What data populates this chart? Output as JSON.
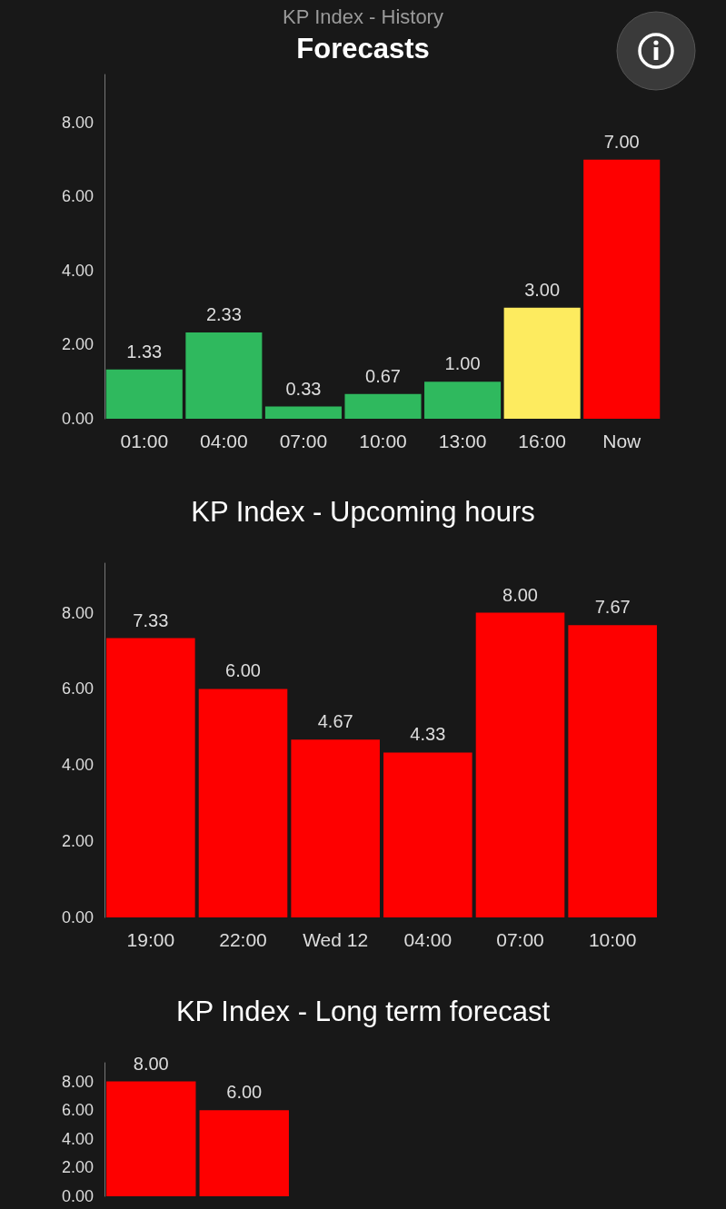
{
  "chart_data": [
    {
      "type": "bar",
      "title": "KP Index - History",
      "annotations": [
        "Forecasts"
      ],
      "categories": [
        "01:00",
        "04:00",
        "07:00",
        "10:00",
        "13:00",
        "16:00",
        "Now"
      ],
      "values": [
        1.33,
        2.33,
        0.33,
        0.67,
        1.0,
        3.0,
        7.0
      ],
      "colors": [
        "#2fb95e",
        "#2fb95e",
        "#2fb95e",
        "#2fb95e",
        "#2fb95e",
        "#fdeb5f",
        "#fe0000"
      ],
      "value_labels": [
        "1.33",
        "2.33",
        "0.33",
        "0.67",
        "1.00",
        "3.00",
        "7.00"
      ],
      "ylim": [
        0,
        9.3
      ],
      "yticks": [
        {
          "value": 0,
          "label": "0.00"
        },
        {
          "value": 2,
          "label": "2.00"
        },
        {
          "value": 4,
          "label": "4.00"
        },
        {
          "value": 6,
          "label": "6.00"
        },
        {
          "value": 8,
          "label": "8.00"
        }
      ],
      "grid": false
    },
    {
      "type": "bar",
      "title": "KP Index - Upcoming hours",
      "categories": [
        "19:00",
        "22:00",
        "Wed 12",
        "04:00",
        "07:00",
        "10:00"
      ],
      "values": [
        7.33,
        6.0,
        4.67,
        4.33,
        8.0,
        7.67
      ],
      "color": "#fe0000",
      "value_labels": [
        "7.33",
        "6.00",
        "4.67",
        "4.33",
        "8.00",
        "7.67"
      ],
      "ylim": [
        0,
        9.3
      ],
      "yticks": [
        {
          "value": 0,
          "label": "0.00"
        },
        {
          "value": 2,
          "label": "2.00"
        },
        {
          "value": 4,
          "label": "4.00"
        },
        {
          "value": 6,
          "label": "6.00"
        },
        {
          "value": 8,
          "label": "8.00"
        }
      ],
      "grid": false
    },
    {
      "type": "bar",
      "title": "KP Index - Long term forecast",
      "categories": [
        null,
        null
      ],
      "values": [
        8.0,
        6.0
      ],
      "color": "#fe0000",
      "value_labels": [
        "8.00",
        "6.00"
      ],
      "ylim": [
        0,
        9.3
      ],
      "yticks": [
        {
          "value": 0,
          "label": "0.00"
        },
        {
          "value": 2,
          "label": "2.00"
        },
        {
          "value": 4,
          "label": "4.00"
        },
        {
          "value": 6,
          "label": "6.00"
        },
        {
          "value": 8,
          "label": "8.00"
        }
      ],
      "grid": false
    }
  ]
}
